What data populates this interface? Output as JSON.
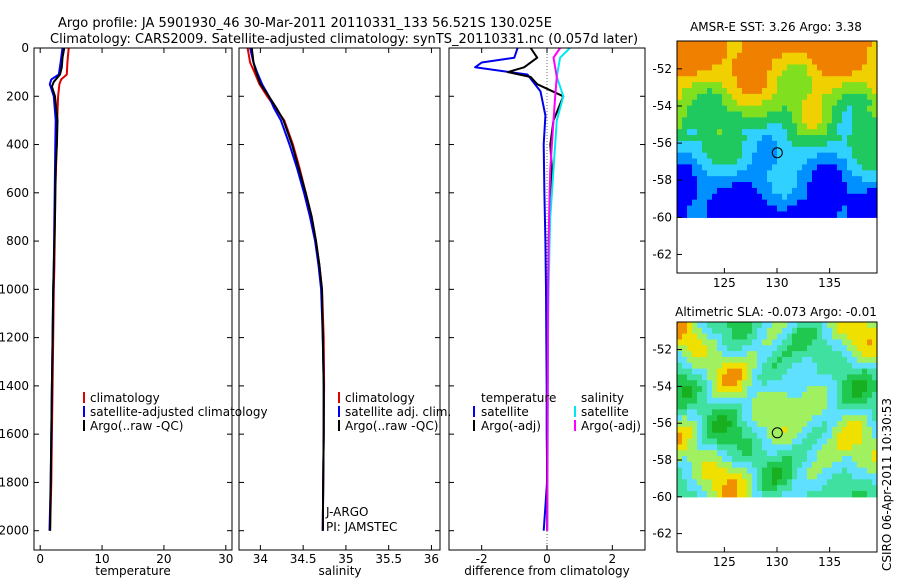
{
  "header": {
    "line1": "Argo profile: JA 5901930_46 30-Mar-2011 20110331_133 56.521S 130.025E",
    "line2": "Climatology: CARS2009. Satellite-adjusted climatology: synTS_20110331.nc (0.057d later)"
  },
  "footer": {
    "stamp": "CSIRO 06-Apr-2011 10:30:53"
  },
  "colors": {
    "red": "#e00000",
    "blue": "#0000ee",
    "black": "#000000",
    "cyan": "#00e8f0",
    "magenta": "#ff00ff"
  },
  "chart_data": [
    {
      "type": "line",
      "xlabel": "temperature",
      "xlim": [
        -1,
        31
      ],
      "ylim": [
        2080,
        0
      ],
      "xticks": [
        0,
        10,
        20,
        30
      ],
      "yticks": [
        0,
        200,
        400,
        600,
        800,
        1000,
        1200,
        1400,
        1600,
        1800,
        2000
      ],
      "legend": [
        "climatology",
        "satellite-adjusted climatology",
        "Argo(..raw -QC)"
      ],
      "legend_colors": [
        "red",
        "blue",
        "black"
      ],
      "series": [
        {
          "color": "red",
          "x": [
            4.6,
            4.4,
            4.3,
            3.4,
            3.1,
            2.9,
            2.75,
            2.65,
            2.55,
            2.45,
            2.4,
            2.35,
            2.3,
            2.2,
            2.1,
            2.0,
            1.9,
            1.8,
            1.7,
            1.6
          ],
          "y": [
            0,
            60,
            110,
            130,
            150,
            200,
            300,
            400,
            500,
            600,
            700,
            800,
            900,
            1000,
            1200,
            1400,
            1600,
            1800,
            1900,
            2000
          ]
        },
        {
          "color": "blue",
          "x": [
            3.6,
            3.3,
            3.0,
            1.8,
            1.55,
            2.2,
            2.5,
            2.45,
            2.4,
            2.35,
            2.3,
            2.25,
            2.2,
            2.1,
            2.0,
            1.9,
            1.8,
            1.7,
            1.6,
            1.5
          ],
          "y": [
            0,
            60,
            110,
            130,
            150,
            200,
            300,
            400,
            500,
            600,
            700,
            800,
            900,
            1000,
            1200,
            1400,
            1600,
            1800,
            1900,
            2000
          ]
        },
        {
          "color": "black",
          "x": [
            3.9,
            3.6,
            3.5,
            3.2,
            2.2,
            1.9,
            2.4,
            2.8,
            2.7,
            2.5,
            2.45,
            2.4,
            2.3,
            2.2,
            2.1,
            2.0,
            1.9,
            1.8,
            1.7,
            1.6
          ],
          "y": [
            0,
            40,
            80,
            110,
            140,
            160,
            200,
            300,
            400,
            500,
            600,
            700,
            800,
            900,
            1000,
            1200,
            1400,
            1600,
            1800,
            2000
          ]
        }
      ]
    },
    {
      "type": "line",
      "xlabel": "salinity",
      "xlim": [
        33.75,
        36.1
      ],
      "ylim": [
        2080,
        0
      ],
      "xticks": [
        34,
        34.5,
        35,
        35.5,
        36
      ],
      "xticklabels": [
        "34",
        "34.5",
        "35",
        "35.5",
        "36"
      ],
      "legend": [
        "climatology",
        "satellite adj. clim.",
        "Argo(..raw -QC)"
      ],
      "legend_colors": [
        "red",
        "blue",
        "black"
      ],
      "annotation": [
        "J-ARGO",
        "PI: JAMSTEC"
      ],
      "series": [
        {
          "color": "red",
          "x": [
            33.85,
            33.88,
            33.93,
            33.99,
            34.08,
            34.18,
            34.28,
            34.38,
            34.46,
            34.53,
            34.6,
            34.65,
            34.69,
            34.72,
            34.74,
            34.745,
            34.74,
            34.735,
            34.73
          ],
          "y": [
            0,
            60,
            100,
            150,
            200,
            250,
            300,
            400,
            500,
            600,
            700,
            800,
            900,
            1000,
            1200,
            1400,
            1600,
            1800,
            2000
          ]
        },
        {
          "color": "blue",
          "x": [
            33.88,
            33.92,
            33.96,
            34.02,
            34.1,
            34.16,
            34.24,
            34.34,
            34.43,
            34.51,
            34.58,
            34.64,
            34.68,
            34.71,
            34.73,
            34.74,
            34.74,
            34.735,
            34.73
          ],
          "y": [
            0,
            60,
            100,
            150,
            200,
            250,
            300,
            400,
            500,
            600,
            700,
            800,
            900,
            1000,
            1200,
            1400,
            1600,
            1800,
            2000
          ]
        },
        {
          "color": "black",
          "x": [
            33.9,
            33.92,
            33.95,
            34.0,
            34.1,
            34.19,
            34.27,
            34.37,
            34.45,
            34.53,
            34.6,
            34.65,
            34.69,
            34.72,
            34.73,
            34.74,
            34.74,
            34.735,
            34.73
          ],
          "y": [
            0,
            60,
            100,
            150,
            200,
            250,
            300,
            400,
            500,
            600,
            700,
            800,
            900,
            1000,
            1200,
            1400,
            1600,
            1800,
            2000
          ]
        }
      ]
    },
    {
      "type": "line",
      "xlabel": "difference from climatology",
      "xlim": [
        -3,
        3
      ],
      "ylim": [
        2080,
        0
      ],
      "xticks": [
        -2,
        0,
        2
      ],
      "legend_left_title": "temperature",
      "legend_left": [
        "satellite",
        "Argo(-adj)"
      ],
      "legend_left_colors": [
        "blue",
        "black"
      ],
      "legend_right_title": "salinity",
      "legend_right": [
        "satellite",
        "Argo(-adj)"
      ],
      "legend_right_colors": [
        "cyan",
        "magenta"
      ],
      "series": [
        {
          "color": "blue",
          "x": [
            -0.9,
            -1.0,
            -2.0,
            -2.2,
            -0.6,
            -0.2,
            -0.05,
            -0.1,
            -0.08,
            -0.05,
            -0.03,
            -0.02,
            -0.01,
            -0.01,
            0.0,
            0.0,
            -0.05,
            -0.1
          ],
          "y": [
            0,
            40,
            60,
            80,
            110,
            180,
            280,
            400,
            600,
            800,
            1000,
            1200,
            1400,
            1600,
            1700,
            1800,
            1900,
            2000
          ]
        },
        {
          "color": "black",
          "x": [
            -0.5,
            -0.3,
            -0.7,
            -1.2,
            -0.5,
            -0.3,
            0.5,
            0.2,
            0.1,
            0.15,
            0.1,
            0.08,
            0.05,
            0.05,
            0.03,
            0.02,
            0.01,
            0.0
          ],
          "y": [
            0,
            40,
            80,
            100,
            120,
            150,
            200,
            300,
            400,
            500,
            600,
            700,
            800,
            900,
            1000,
            1200,
            1600,
            2000
          ]
        },
        {
          "color": "cyan",
          "x": [
            0.7,
            0.4,
            0.35,
            0.3,
            0.4,
            0.5,
            0.3,
            0.25,
            0.2,
            0.15,
            0.1,
            0.08,
            0.05,
            0.03,
            0.02,
            0.01
          ],
          "y": [
            0,
            40,
            80,
            120,
            160,
            200,
            300,
            400,
            500,
            600,
            700,
            800,
            1000,
            1200,
            1600,
            2000
          ]
        },
        {
          "color": "magenta",
          "x": [
            0.4,
            0.2,
            0.25,
            0.3,
            0.25,
            0.2,
            0.15,
            0.1,
            0.08,
            0.05,
            0.03,
            0.02,
            0.01
          ],
          "y": [
            0,
            40,
            80,
            120,
            200,
            300,
            400,
            500,
            600,
            800,
            1000,
            1400,
            2000
          ]
        }
      ]
    },
    {
      "type": "heatmap",
      "title": "AMSR-E SST: 3.26 Argo: 3.38",
      "xlim": [
        120.5,
        139.5
      ],
      "ylim": [
        -63,
        -50.5
      ],
      "xticks": [
        125,
        130,
        135
      ],
      "yticks": [
        -52,
        -54,
        -56,
        -58,
        -60,
        -62
      ],
      "data_ylim": [
        -60,
        -50.5
      ],
      "marker": {
        "lon": 130.025,
        "lat": -56.521
      },
      "palette": [
        "#0000ff",
        "#0090ff",
        "#30d0ff",
        "#20c860",
        "#80e020",
        "#f0d000",
        "#f08000"
      ]
    },
    {
      "type": "heatmap",
      "title": "Altimetric SLA: -0.073 Argo: -0.01",
      "xlim": [
        120.5,
        139.5
      ],
      "ylim": [
        -63,
        -50.5
      ],
      "xticks": [
        125,
        130,
        135
      ],
      "yticks": [
        -52,
        -54,
        -56,
        -58,
        -60,
        -62
      ],
      "data_ylim": [
        -60,
        -50.5
      ],
      "marker": {
        "lon": 130.025,
        "lat": -56.521
      },
      "palette": [
        "#18b020",
        "#20c850",
        "#40e0a0",
        "#60e0ff",
        "#a0f060",
        "#f0e000",
        "#f09000"
      ]
    }
  ]
}
